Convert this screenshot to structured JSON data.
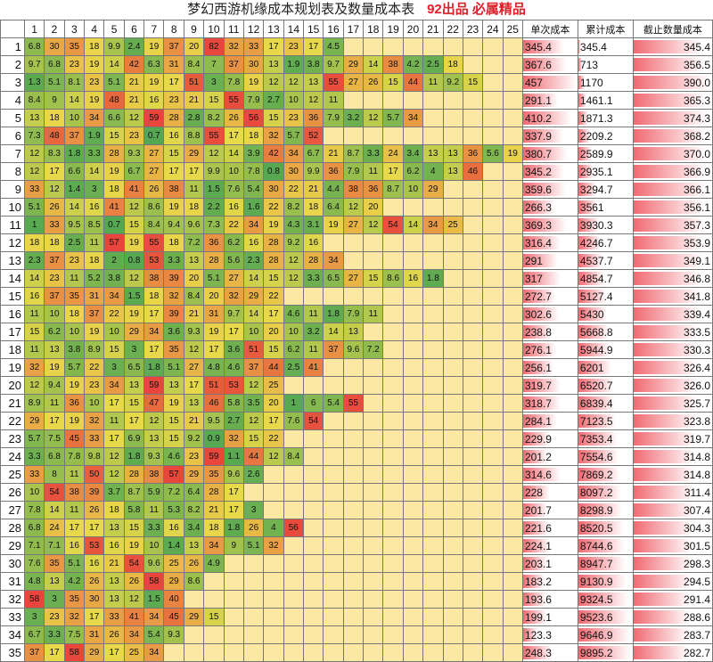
{
  "sheet": {
    "title": "梦幻西游机缘成本规划表及数量成本表",
    "badge": "92出品 必属精品",
    "col_headers": [
      "1",
      "2",
      "3",
      "4",
      "5",
      "6",
      "7",
      "8",
      "9",
      "10",
      "11",
      "12",
      "13",
      "14",
      "15",
      "16",
      "17",
      "18",
      "19",
      "20",
      "21",
      "22",
      "23",
      "24",
      "25"
    ],
    "value_headers": [
      "单次成本",
      "累计成本",
      "截止数量成本"
    ],
    "colors": {
      "low": "#4fa652",
      "mid": "#e8d94a",
      "high": "#e8463c",
      "empty": "#fbe9a3",
      "bar": "#f06a72"
    },
    "rows": [
      {
        "n": "1",
        "cells": [
          "6.8",
          "30",
          "35",
          "18",
          "9.9",
          "2.4",
          "19",
          "37",
          "20",
          "82",
          "32",
          "33",
          "17",
          "23",
          "17",
          "4.5"
        ],
        "single": "345.4",
        "cum": "345.4",
        "avg": "345.4"
      },
      {
        "n": "2",
        "cells": [
          "9.7",
          "6.8",
          "23",
          "19",
          "14",
          "42",
          "6.3",
          "31",
          "8.4",
          "7",
          "37",
          "30",
          "13",
          "1.9",
          "3.8",
          "9.7",
          "29",
          "14",
          "38",
          "4.2",
          "2.5",
          "18"
        ],
        "single": "367.6",
        "cum": "713",
        "avg": "356.5"
      },
      {
        "n": "3",
        "cells": [
          "1.3",
          "5.1",
          "8.1",
          "23",
          "5.1",
          "21",
          "19",
          "17",
          "51",
          "3",
          "7.8",
          "19",
          "12",
          "12",
          "13",
          "55",
          "27",
          "26",
          "15",
          "44",
          "11",
          "9.2",
          "15"
        ],
        "single": "457",
        "cum": "1170",
        "avg": "390.0"
      },
      {
        "n": "4",
        "cells": [
          "8.4",
          "9",
          "14",
          "19",
          "48",
          "21",
          "16",
          "23",
          "21",
          "15",
          "55",
          "7.9",
          "2.7",
          "10",
          "12",
          "11"
        ],
        "single": "291.1",
        "cum": "1461.1",
        "avg": "365.3"
      },
      {
        "n": "5",
        "cells": [
          "13",
          "18",
          "10",
          "34",
          "6.6",
          "12",
          "59",
          "28",
          "2.8",
          "8.2",
          "26",
          "56",
          "15",
          "23",
          "36",
          "7.9",
          "3.2",
          "12",
          "5.7",
          "34"
        ],
        "single": "410.2",
        "cum": "1871.3",
        "avg": "374.3"
      },
      {
        "n": "6",
        "cells": [
          "7.3",
          "48",
          "37",
          "1.9",
          "15",
          "23",
          "0.7",
          "16",
          "8.8",
          "55",
          "17",
          "18",
          "32",
          "5.7",
          "52"
        ],
        "single": "337.9",
        "cum": "2209.2",
        "avg": "368.2"
      },
      {
        "n": "7",
        "cells": [
          "12",
          "8.3",
          "1.8",
          "3.3",
          "28",
          "9.3",
          "27",
          "15",
          "29",
          "12",
          "14",
          "3.9",
          "42",
          "34",
          "6.7",
          "21",
          "8.7",
          "3.3",
          "24",
          "3.4",
          "13",
          "13",
          "36",
          "5.6",
          "19"
        ],
        "single": "380.7",
        "cum": "2589.9",
        "avg": "370.0"
      },
      {
        "n": "8",
        "cells": [
          "12",
          "17",
          "6.6",
          "14",
          "19",
          "6.7",
          "27",
          "17",
          "17",
          "9.9",
          "10",
          "7.8",
          "0.8",
          "30",
          "9.9",
          "36",
          "7.9",
          "11",
          "17",
          "6.2",
          "4",
          "13",
          "46"
        ],
        "single": "345.2",
        "cum": "2935.1",
        "avg": "366.9"
      },
      {
        "n": "9",
        "cells": [
          "33",
          "12",
          "1.4",
          "3",
          "18",
          "41",
          "26",
          "38",
          "11",
          "1.5",
          "7.6",
          "5.4",
          "30",
          "22",
          "21",
          "4.4",
          "38",
          "36",
          "8.7",
          "10",
          "29"
        ],
        "single": "359.6",
        "cum": "3294.7",
        "avg": "366.1"
      },
      {
        "n": "10",
        "cells": [
          "5.1",
          "26",
          "14",
          "16",
          "41",
          "12",
          "8.6",
          "19",
          "18",
          "2.2",
          "16",
          "1.6",
          "22",
          "8.2",
          "18",
          "6.4",
          "12",
          "20"
        ],
        "single": "266.3",
        "cum": "3561",
        "avg": "356.1"
      },
      {
        "n": "11",
        "cells": [
          "1",
          "33",
          "9.5",
          "8.5",
          "0.7",
          "15",
          "8.4",
          "9.4",
          "9.6",
          "7.3",
          "22",
          "34",
          "19",
          "4.3",
          "3.1",
          "19",
          "27",
          "12",
          "54",
          "14",
          "34",
          "25"
        ],
        "single": "369.3",
        "cum": "3930.3",
        "avg": "357.3"
      },
      {
        "n": "12",
        "cells": [
          "18",
          "18",
          "2.5",
          "11",
          "57",
          "19",
          "55",
          "18",
          "7.2",
          "36",
          "6.2",
          "16",
          "28",
          "9.2",
          "16"
        ],
        "single": "316.4",
        "cum": "4246.7",
        "avg": "353.9"
      },
      {
        "n": "13",
        "cells": [
          "2.3",
          "37",
          "23",
          "18",
          "2",
          "0.8",
          "53",
          "3.3",
          "13",
          "28",
          "5.6",
          "2.3",
          "28",
          "12",
          "28",
          "34"
        ],
        "single": "291",
        "cum": "4537.7",
        "avg": "349.1"
      },
      {
        "n": "14",
        "cells": [
          "14",
          "23",
          "11",
          "5.2",
          "3.8",
          "12",
          "38",
          "39",
          "20",
          "5.1",
          "27",
          "14",
          "15",
          "12",
          "3.3",
          "6.5",
          "27",
          "15",
          "8.6",
          "16",
          "1.8"
        ],
        "single": "317",
        "cum": "4854.7",
        "avg": "346.8"
      },
      {
        "n": "15",
        "cells": [
          "16",
          "37",
          "35",
          "31",
          "34",
          "1.5",
          "18",
          "32",
          "8.4",
          "20",
          "32",
          "29",
          "22"
        ],
        "single": "272.7",
        "cum": "5127.4",
        "avg": "341.8"
      },
      {
        "n": "16",
        "cells": [
          "11",
          "10",
          "18",
          "37",
          "22",
          "19",
          "17",
          "39",
          "21",
          "31",
          "9.7",
          "14",
          "17",
          "4.6",
          "11",
          "1.8",
          "7.9",
          "11"
        ],
        "single": "302.6",
        "cum": "5430",
        "avg": "339.4"
      },
      {
        "n": "17",
        "cells": [
          "15",
          "6.2",
          "10",
          "19",
          "10",
          "29",
          "34",
          "3.6",
          "9.3",
          "19",
          "17",
          "10",
          "20",
          "10",
          "3.2",
          "14",
          "13"
        ],
        "single": "238.8",
        "cum": "5668.8",
        "avg": "333.5"
      },
      {
        "n": "18",
        "cells": [
          "11",
          "13",
          "3.8",
          "8.9",
          "15",
          "3",
          "17",
          "35",
          "12",
          "17",
          "3.6",
          "51",
          "15",
          "6.2",
          "11",
          "37",
          "9.6",
          "7.2"
        ],
        "single": "276.1",
        "cum": "5944.9",
        "avg": "330.3"
      },
      {
        "n": "19",
        "cells": [
          "32",
          "19",
          "5.7",
          "22",
          "3",
          "6.5",
          "1.8",
          "5.1",
          "27",
          "4.8",
          "4.6",
          "37",
          "44",
          "2.5",
          "41"
        ],
        "single": "256.1",
        "cum": "6201",
        "avg": "326.4"
      },
      {
        "n": "20",
        "cells": [
          "12",
          "9.4",
          "19",
          "23",
          "34",
          "13",
          "59",
          "13",
          "17",
          "51",
          "53",
          "12",
          "25"
        ],
        "single": "319.7",
        "cum": "6520.7",
        "avg": "326.0"
      },
      {
        "n": "21",
        "cells": [
          "8.9",
          "11",
          "36",
          "10",
          "17",
          "15",
          "47",
          "19",
          "13",
          "46",
          "5.8",
          "3.5",
          "20",
          "1",
          "6",
          "5.4",
          "55"
        ],
        "single": "318.7",
        "cum": "6839.4",
        "avg": "325.7"
      },
      {
        "n": "22",
        "cells": [
          "29",
          "17",
          "19",
          "32",
          "11",
          "17",
          "12",
          "15",
          "21",
          "9.5",
          "2.7",
          "12",
          "17",
          "7.6",
          "54"
        ],
        "single": "284.1",
        "cum": "7123.5",
        "avg": "323.8"
      },
      {
        "n": "23",
        "cells": [
          "5.7",
          "7.5",
          "45",
          "33",
          "17",
          "6.9",
          "13",
          "15",
          "9.2",
          "0.9",
          "32",
          "15",
          "22"
        ],
        "single": "229.9",
        "cum": "7353.4",
        "avg": "319.7"
      },
      {
        "n": "24",
        "cells": [
          "3.3",
          "6.8",
          "7.8",
          "9.8",
          "12",
          "1.8",
          "9.3",
          "4.6",
          "23",
          "59",
          "1.1",
          "44",
          "12",
          "8.4"
        ],
        "single": "201.2",
        "cum": "7554.6",
        "avg": "314.8"
      },
      {
        "n": "25",
        "cells": [
          "33",
          "8",
          "11",
          "50",
          "12",
          "28",
          "38",
          "57",
          "29",
          "35",
          "9.6",
          "2.6"
        ],
        "single": "314.6",
        "cum": "7869.2",
        "avg": "314.8"
      },
      {
        "n": "26",
        "cells": [
          "10",
          "54",
          "38",
          "39",
          "3.7",
          "8.7",
          "5.9",
          "7.2",
          "6.4",
          "28",
          "17"
        ],
        "single": "228",
        "cum": "8097.2",
        "avg": "311.4"
      },
      {
        "n": "27",
        "cells": [
          "7.8",
          "14",
          "11",
          "26",
          "18",
          "5.8",
          "11",
          "5.3",
          "8.2",
          "21",
          "17",
          "3"
        ],
        "single": "201.7",
        "cum": "8298.9",
        "avg": "307.4"
      },
      {
        "n": "28",
        "cells": [
          "6.8",
          "24",
          "17",
          "17",
          "13",
          "15",
          "3.3",
          "16",
          "3.4",
          "18",
          "1.8",
          "26",
          "4",
          "56"
        ],
        "single": "221.6",
        "cum": "8520.5",
        "avg": "304.3"
      },
      {
        "n": "29",
        "cells": [
          "7.1",
          "7.1",
          "16",
          "53",
          "16",
          "19",
          "10",
          "1.4",
          "13",
          "34",
          "9",
          "5.1",
          "32"
        ],
        "single": "224.1",
        "cum": "8744.6",
        "avg": "301.5"
      },
      {
        "n": "30",
        "cells": [
          "7.6",
          "35",
          "5.1",
          "16",
          "21",
          "54",
          "9.6",
          "25",
          "26",
          "4.9"
        ],
        "single": "203.1",
        "cum": "8947.7",
        "avg": "298.3"
      },
      {
        "n": "31",
        "cells": [
          "4.8",
          "13",
          "4.2",
          "26",
          "13",
          "26",
          "58",
          "29",
          "8.6"
        ],
        "single": "183.2",
        "cum": "9130.9",
        "avg": "294.5"
      },
      {
        "n": "32",
        "cells": [
          "58",
          "3",
          "35",
          "30",
          "13",
          "12",
          "1.5",
          "40"
        ],
        "single": "193.6",
        "cum": "9324.5",
        "avg": "291.4"
      },
      {
        "n": "33",
        "cells": [
          "3",
          "23",
          "32",
          "17",
          "33",
          "41",
          "34",
          "45",
          "29",
          "15"
        ],
        "single": "199.1",
        "cum": "9523.6",
        "avg": "288.6"
      },
      {
        "n": "34",
        "cells": [
          "6.7",
          "3.3",
          "7.5",
          "31",
          "26",
          "34",
          "5.4",
          "9.3"
        ],
        "single": "123.3",
        "cum": "9646.9",
        "avg": "283.7"
      },
      {
        "n": "35",
        "cells": [
          "37",
          "17",
          "58",
          "29",
          "17",
          "25",
          "34"
        ],
        "single": "248.3",
        "cum": "9895.2",
        "avg": "282.7"
      }
    ]
  }
}
